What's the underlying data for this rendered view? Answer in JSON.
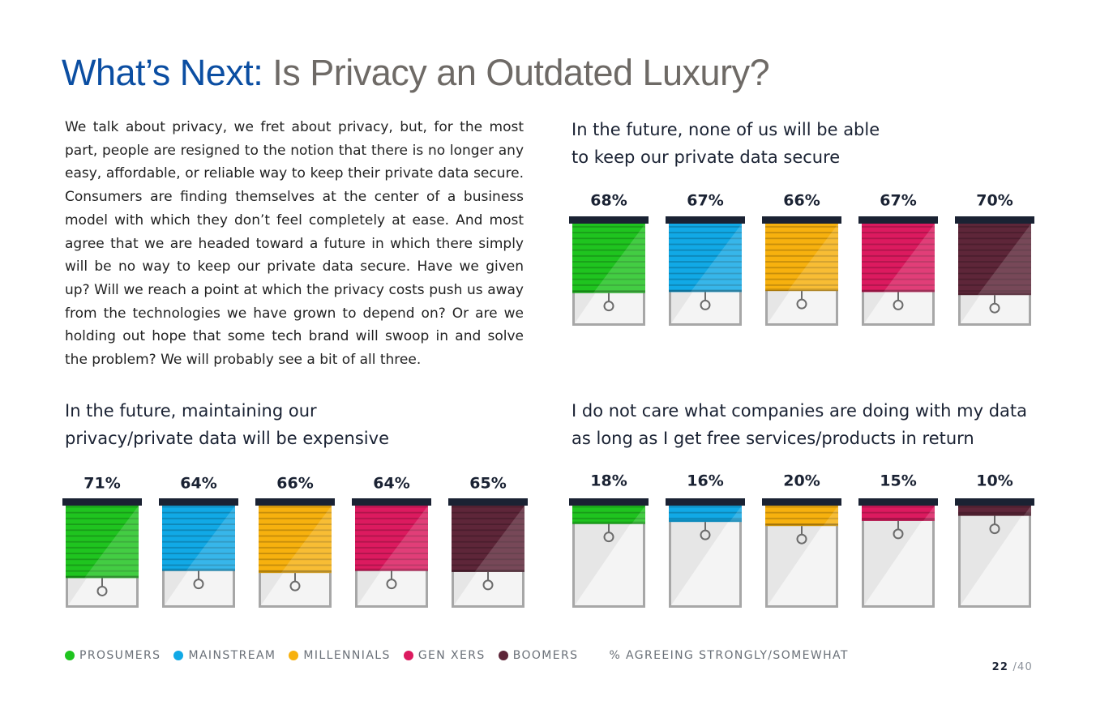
{
  "title": {
    "highlight": "What’s Next:",
    "rest": "Is Privacy an Outdated Luxury?"
  },
  "body": "We talk about privacy, we fret about privacy, but, for the most part, people are resigned to the notion that there is no longer any easy, affordable, or reliable way to keep their private data secure. Consumers are finding themselves at the center of a business model with which they don’t feel completely at ease. And most agree that we are headed toward a future in which there simply will be no way to keep our private data secure. Have we given up? Will we reach a point at which the privacy costs push us away from the technologies we have grown to depend on? Or are we holding out hope that some tech brand will swoop in and solve the problem? We will probably see a bit of all three.",
  "segments": [
    "Prosumers",
    "Mainstream",
    "Millennials",
    "Gen Xers",
    "Boomers"
  ],
  "colors": {
    "Prosumers": "#1fc41f",
    "Mainstream": "#11a9e6",
    "Millennials": "#f7b10e",
    "Gen Xers": "#dc1a5f",
    "Boomers": "#5e2639"
  },
  "chart_data": [
    {
      "type": "bar",
      "title_lines": [
        "In the future, none of us will be able",
        "to keep our private data secure"
      ],
      "categories": [
        "Prosumers",
        "Mainstream",
        "Millennials",
        "Gen Xers",
        "Boomers"
      ],
      "values": [
        68,
        67,
        66,
        67,
        70
      ],
      "labels": [
        "68%",
        "67%",
        "66%",
        "67%",
        "70%"
      ],
      "unit": "% agreeing strongly/somewhat",
      "ylim": [
        0,
        100
      ]
    },
    {
      "type": "bar",
      "title_lines": [
        "In the future, maintaining our",
        "privacy/private data will be expensive"
      ],
      "categories": [
        "Prosumers",
        "Mainstream",
        "Millennials",
        "Gen Xers",
        "Boomers"
      ],
      "values": [
        71,
        64,
        66,
        64,
        65
      ],
      "labels": [
        "71%",
        "64%",
        "66%",
        "64%",
        "65%"
      ],
      "unit": "% agreeing strongly/somewhat",
      "ylim": [
        0,
        100
      ]
    },
    {
      "type": "bar",
      "title_lines": [
        "I do not care what companies are doing with my data",
        "as long as I get free services/products in return"
      ],
      "categories": [
        "Prosumers",
        "Mainstream",
        "Millennials",
        "Gen Xers",
        "Boomers"
      ],
      "values": [
        18,
        16,
        20,
        15,
        10
      ],
      "labels": [
        "18%",
        "16%",
        "20%",
        "15%",
        "10%"
      ],
      "unit": "% agreeing strongly/somewhat",
      "ylim": [
        0,
        100
      ]
    }
  ],
  "legend": {
    "items": [
      "PROSUMERS",
      "MAINSTREAM",
      "MILLENNIALS",
      "GEN XERS",
      "BOOMERS"
    ],
    "note": "% AGREEING STRONGLY/SOMEWHAT"
  },
  "page": {
    "current": "22",
    "total": "/40"
  }
}
